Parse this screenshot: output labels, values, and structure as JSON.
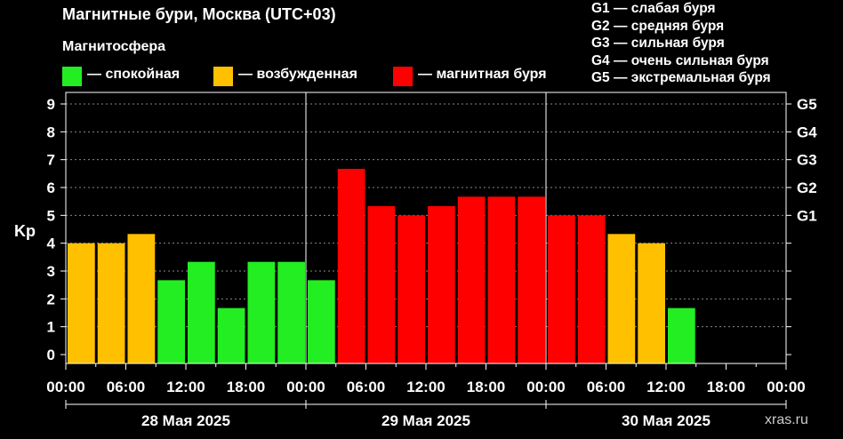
{
  "chart_data": {
    "type": "bar",
    "title": "Магнитные бури, Москва (UTC+03)",
    "legend_title": "Магнитосфера",
    "legend": [
      {
        "label": "— спокойная",
        "color": "#22ee22"
      },
      {
        "label": "— возбужденная",
        "color": "#ffc000"
      },
      {
        "label": "— магнитная буря",
        "color": "#ff0000"
      }
    ],
    "g_legend": [
      "G1 — слабая буря",
      "G2 — средняя буря",
      "G3 — сильная буря",
      "G4 — очень сильная буря",
      "G5 — экстремальная буря"
    ],
    "ylabel": "Kp",
    "ylim": [
      0,
      9
    ],
    "yticks": [
      "0",
      "1",
      "2",
      "3",
      "4",
      "5",
      "6",
      "7",
      "8",
      "9"
    ],
    "right_ticks": [
      {
        "value": 5,
        "label": "G1"
      },
      {
        "value": 6,
        "label": "G2"
      },
      {
        "value": 7,
        "label": "G3"
      },
      {
        "value": 8,
        "label": "G4"
      },
      {
        "value": 9,
        "label": "G5"
      }
    ],
    "xticks": [
      "00:00",
      "06:00",
      "12:00",
      "18:00",
      "00:00",
      "06:00",
      "12:00",
      "18:00",
      "00:00",
      "06:00",
      "12:00",
      "18:00",
      "00:00"
    ],
    "days": [
      "28 Мая 2025",
      "29 Мая 2025",
      "30 Мая 2025"
    ],
    "interval_hours": 3,
    "values": [
      4,
      4,
      4.33,
      2.67,
      3.33,
      1.67,
      3.33,
      3.33,
      2.67,
      6.67,
      5.33,
      5,
      5.33,
      5.67,
      5.67,
      5.67,
      5,
      5,
      4.33,
      4,
      1.67
    ],
    "colors": [
      "#ffc000",
      "#ffc000",
      "#ffc000",
      "#22ee22",
      "#22ee22",
      "#22ee22",
      "#22ee22",
      "#22ee22",
      "#22ee22",
      "#ff0000",
      "#ff0000",
      "#ff0000",
      "#ff0000",
      "#ff0000",
      "#ff0000",
      "#ff0000",
      "#ff0000",
      "#ff0000",
      "#ffc000",
      "#ffc000",
      "#22ee22"
    ],
    "grid": true
  },
  "watermark": "xras.ru"
}
